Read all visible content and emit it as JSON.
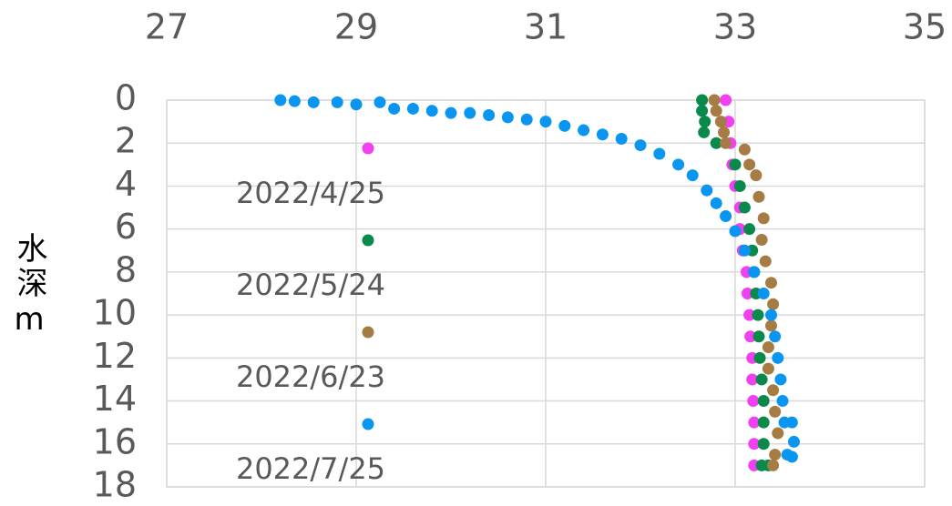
{
  "chart_data": {
    "type": "scatter",
    "y_label": "水深m",
    "xlim": [
      27,
      35
    ],
    "xticks": [
      27,
      29,
      31,
      33,
      35
    ],
    "ylim": [
      0,
      18
    ],
    "yticks": [
      0,
      2,
      4,
      6,
      8,
      10,
      12,
      14,
      16,
      18
    ],
    "y_inverted": true,
    "grid": true,
    "series": [
      {
        "name": "2022/4/25",
        "color": "#f040f0",
        "x": [
          32.9,
          32.93,
          32.95,
          32.97,
          33.0,
          33.05,
          33.05,
          33.08,
          33.12,
          33.13,
          33.15,
          33.16,
          33.18,
          33.18,
          33.19,
          33.2,
          33.2,
          33.2
        ],
        "values": [
          0,
          1,
          2,
          3,
          4,
          5,
          6,
          7,
          8,
          9,
          10,
          11,
          12,
          13,
          14,
          15,
          16,
          17
        ]
      },
      {
        "name": "2022/5/24",
        "color": "#0a8a4a",
        "x": [
          32.65,
          32.65,
          32.68,
          32.67,
          32.8,
          33.0,
          33.05,
          33.1,
          33.15,
          33.18,
          33.2,
          33.22,
          33.24,
          33.25,
          33.26,
          33.28,
          33.3,
          33.3,
          33.3,
          33.28,
          33.35
        ],
        "values": [
          0,
          0.5,
          1,
          1.5,
          2,
          3,
          4,
          5,
          6,
          7,
          8,
          9,
          10,
          11,
          12,
          13,
          14,
          15,
          16,
          17,
          17
        ]
      },
      {
        "name": "2022/6/23",
        "color": "#a67c45",
        "x": [
          32.78,
          32.8,
          32.85,
          32.88,
          32.9,
          33.1,
          33.15,
          33.22,
          33.25,
          33.3,
          33.28,
          33.32,
          33.38,
          33.4,
          33.38,
          33.35,
          33.35,
          33.4,
          33.42,
          33.45,
          33.42,
          33.4
        ],
        "values": [
          0,
          0.5,
          1,
          1.5,
          2,
          2.3,
          3,
          3.5,
          4.5,
          5.5,
          6.5,
          7.5,
          8.5,
          9.5,
          10.5,
          11.5,
          12.5,
          13.5,
          14.5,
          15.5,
          16.5,
          17
        ]
      },
      {
        "name": "2022/7/25",
        "color": "#0a96f0",
        "x": [
          28.2,
          28.35,
          28.55,
          28.8,
          29.0,
          29.25,
          29.4,
          29.6,
          29.8,
          30.0,
          30.2,
          30.4,
          30.6,
          30.8,
          31.0,
          31.2,
          31.4,
          31.6,
          31.8,
          32.0,
          32.2,
          32.4,
          32.55,
          32.7,
          32.8,
          32.9,
          33.0,
          33.1,
          33.2,
          33.3,
          33.38,
          33.42,
          33.45,
          33.48,
          33.5,
          33.52,
          33.6,
          33.62,
          33.55,
          33.6
        ],
        "values": [
          0,
          0.05,
          0.1,
          0.1,
          0.2,
          0.1,
          0.4,
          0.4,
          0.5,
          0.6,
          0.6,
          0.7,
          0.8,
          0.9,
          1.0,
          1.2,
          1.4,
          1.6,
          1.8,
          2.1,
          2.5,
          3.0,
          3.5,
          4.2,
          4.8,
          5.4,
          6.1,
          7.0,
          8.0,
          9.0,
          10.0,
          11.0,
          12.0,
          13.0,
          14.0,
          15.0,
          15.0,
          15.9,
          16.5,
          16.6
        ]
      }
    ]
  }
}
